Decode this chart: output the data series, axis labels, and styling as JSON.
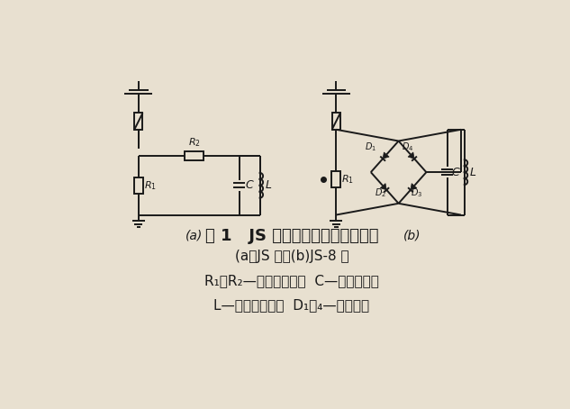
{
  "bg_color": "#ffffff",
  "paper_color": "#e8e0d0",
  "line_color": "#1a1a1a",
  "text_color": "#1a1a1a",
  "title_line1": "图 1   JS 型动作记数器的原理接线",
  "title_line2": "(a）JS 型；(b)JS-8 型",
  "title_line3": "R₁、R₂—非线性电阵；  C—贮能电容器",
  "title_line4": "L—记数器线圈；  D₁～₄—硬二极管",
  "label_a": "(a)",
  "label_b": "(b)"
}
